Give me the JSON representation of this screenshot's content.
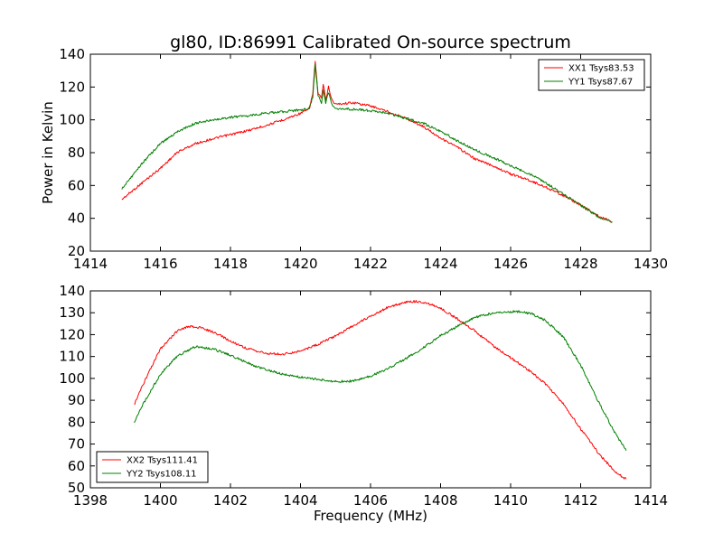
{
  "figure": {
    "title": "gl80, ID:86991 Calibrated On-source spectrum",
    "xlabel": "Frequency (MHz)"
  },
  "chart_data": [
    {
      "type": "line",
      "title": "gl80, ID:86991 Calibrated On-source spectrum",
      "xlabel": "",
      "ylabel": "Power in Kelvin",
      "xlim": [
        1414,
        1430
      ],
      "ylim": [
        20,
        140
      ],
      "xticks": [
        1414,
        1416,
        1418,
        1420,
        1422,
        1424,
        1426,
        1428,
        1430
      ],
      "yticks": [
        20,
        40,
        60,
        80,
        100,
        120,
        140
      ],
      "grid": false,
      "legend": "top-right",
      "series": [
        {
          "name": "XX1 Tsys83.53",
          "color": "#ff0000",
          "x": [
            1414.9,
            1415.5,
            1416.0,
            1416.5,
            1417.0,
            1417.5,
            1418.0,
            1418.5,
            1419.0,
            1419.5,
            1420.0,
            1420.25,
            1420.35,
            1420.42,
            1420.5,
            1420.6,
            1420.65,
            1420.72,
            1420.8,
            1420.9,
            1421.0,
            1421.5,
            1422.0,
            1422.5,
            1423.0,
            1423.5,
            1424.0,
            1424.5,
            1425.0,
            1425.5,
            1426.0,
            1426.5,
            1427.0,
            1427.5,
            1428.0,
            1428.5,
            1428.9
          ],
          "values": [
            51.5,
            62,
            70.5,
            80.5,
            85.5,
            88.5,
            91,
            93.5,
            96.5,
            100,
            104,
            106.5,
            116,
            136,
            116,
            113,
            122,
            112,
            120,
            112,
            109.5,
            110.5,
            108.5,
            105,
            101,
            96,
            89,
            83,
            76,
            72,
            67,
            63.5,
            59,
            54,
            48,
            41.5,
            38
          ]
        },
        {
          "name": "YY1 Tsys87.67",
          "color": "#008000",
          "x": [
            1414.9,
            1415.5,
            1416.0,
            1416.5,
            1417.0,
            1417.5,
            1418.0,
            1418.5,
            1419.0,
            1419.5,
            1420.0,
            1420.25,
            1420.35,
            1420.42,
            1420.5,
            1420.6,
            1420.65,
            1420.72,
            1420.8,
            1420.9,
            1421.0,
            1421.5,
            1422.0,
            1422.5,
            1423.0,
            1423.5,
            1424.0,
            1424.5,
            1425.0,
            1425.5,
            1426.0,
            1426.5,
            1427.0,
            1427.5,
            1428.0,
            1428.5,
            1428.9
          ],
          "values": [
            58,
            74,
            85.5,
            93,
            98,
            100,
            101.5,
            102.5,
            104,
            105,
            106,
            107,
            114,
            134,
            115,
            110,
            118,
            110,
            117,
            109,
            107,
            106.5,
            105.5,
            104,
            101,
            98,
            93,
            87,
            81.5,
            77,
            72,
            67.5,
            61.5,
            55,
            48,
            41,
            37.5
          ]
        }
      ]
    },
    {
      "type": "line",
      "title": "",
      "xlabel": "Frequency (MHz)",
      "ylabel": "",
      "xlim": [
        1398,
        1414
      ],
      "ylim": [
        50,
        140
      ],
      "xticks": [
        1398,
        1400,
        1402,
        1404,
        1406,
        1408,
        1410,
        1412,
        1414
      ],
      "yticks": [
        50,
        60,
        70,
        80,
        90,
        100,
        110,
        120,
        130,
        140
      ],
      "grid": false,
      "legend": "bottom-left",
      "series": [
        {
          "name": "XX2 Tsys111.41",
          "color": "#ff0000",
          "x": [
            1399.25,
            1399.5,
            1400.0,
            1400.5,
            1400.8,
            1401.2,
            1401.6,
            1402.0,
            1402.5,
            1403.0,
            1403.5,
            1404.0,
            1404.5,
            1405.0,
            1405.5,
            1406.0,
            1406.5,
            1407.0,
            1407.3,
            1407.6,
            1408.0,
            1408.5,
            1409.0,
            1409.5,
            1410.0,
            1410.5,
            1411.0,
            1411.5,
            1412.0,
            1412.5,
            1413.0,
            1413.3
          ],
          "values": [
            88,
            97,
            113.5,
            122,
            123.8,
            123,
            120.5,
            117,
            113.5,
            111.5,
            111,
            112.5,
            115.5,
            119.5,
            124,
            128.5,
            132.5,
            134.8,
            135.2,
            134.5,
            132,
            127,
            121.5,
            115,
            109.5,
            104,
            97.5,
            88.5,
            77,
            66,
            57,
            54
          ]
        },
        {
          "name": "YY2 Tsys108.11",
          "color": "#008000",
          "x": [
            1399.25,
            1399.5,
            1400.0,
            1400.5,
            1401.0,
            1401.5,
            1402.0,
            1402.5,
            1403.0,
            1403.5,
            1404.0,
            1404.5,
            1405.0,
            1405.5,
            1406.0,
            1406.5,
            1407.0,
            1407.5,
            1408.0,
            1408.5,
            1409.0,
            1409.5,
            1410.0,
            1410.3,
            1410.6,
            1411.0,
            1411.5,
            1412.0,
            1412.5,
            1413.0,
            1413.3
          ],
          "values": [
            80,
            88,
            102,
            110.5,
            114.5,
            113.5,
            110.5,
            107,
            104,
            102,
            100.5,
            99.5,
            98.5,
            98.8,
            101,
            104.5,
            109,
            114,
            119.5,
            124,
            128,
            129.8,
            130.5,
            130.5,
            129.5,
            126.5,
            119,
            106,
            89.5,
            74.5,
            67
          ]
        }
      ]
    }
  ]
}
